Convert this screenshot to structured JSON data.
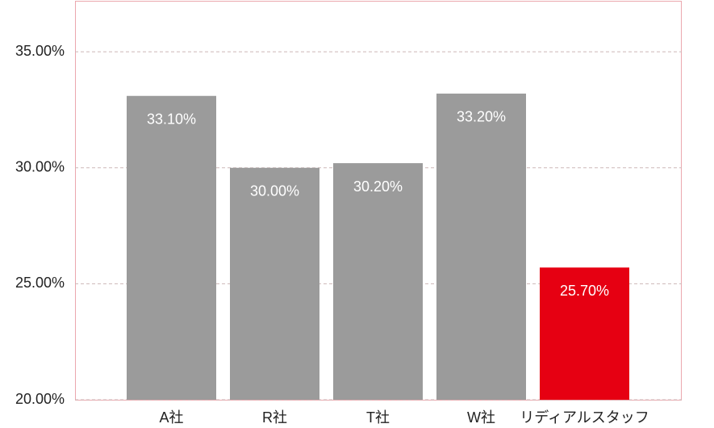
{
  "chart_data": {
    "type": "bar",
    "categories": [
      "A社",
      "R社",
      "T社",
      "W社",
      "リディアルスタッフ"
    ],
    "values": [
      33.1,
      30.0,
      30.2,
      33.2,
      25.7
    ],
    "value_labels": [
      "33.10%",
      "30.00%",
      "30.20%",
      "33.20%",
      "25.70%"
    ],
    "colors": [
      "#9b9b9b",
      "#9b9b9b",
      "#9b9b9b",
      "#9b9b9b",
      "#e60012"
    ],
    "ylim": [
      20,
      37.2
    ],
    "yticks": [
      {
        "value": 20,
        "label": "20.00%"
      },
      {
        "value": 25,
        "label": "25.00%"
      },
      {
        "value": 30,
        "label": "30.00%"
      },
      {
        "value": 35,
        "label": "35.00%"
      }
    ],
    "grid": true
  }
}
